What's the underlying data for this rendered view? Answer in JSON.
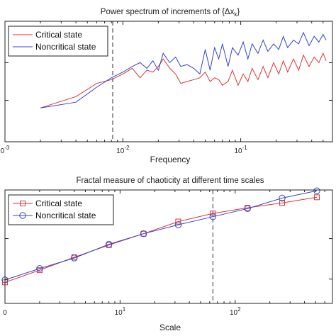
{
  "colors": {
    "critical": "#dd3333",
    "noncritical": "#3344cc",
    "axis": "#222222",
    "marker_line": "#333333"
  },
  "chart_data": [
    {
      "type": "line",
      "title": "Power spectrum of increments of {Δx",
      "title_sub": "k",
      "title_end": "}",
      "xlabel": "Frequency",
      "ylabel": "",
      "xscale": "log",
      "yscale": "log",
      "xlim": [
        0.001,
        0.6
      ],
      "ylim_log10": [
        -1.1,
        2.1
      ],
      "xticks": [
        {
          "value": 0.001,
          "base": "0",
          "exp": "-3"
        },
        {
          "value": 0.01,
          "base": "10",
          "exp": "-2"
        },
        {
          "value": 0.1,
          "base": "10",
          "exp": "-1"
        }
      ],
      "yticks_log10": [
        0,
        1
      ],
      "vline_x": 0.0082,
      "legend_position": "top-left",
      "series": [
        {
          "name": "Critical state",
          "color": "#dd3333",
          "x": [
            0.002,
            0.004,
            0.006,
            0.008,
            0.01,
            0.012,
            0.014,
            0.016,
            0.018,
            0.02,
            0.022,
            0.025,
            0.028,
            0.031,
            0.035,
            0.04,
            0.045,
            0.05,
            0.055,
            0.06,
            0.065,
            0.07,
            0.078,
            0.085,
            0.095,
            0.105,
            0.115,
            0.125,
            0.14,
            0.155,
            0.17,
            0.19,
            0.21,
            0.23,
            0.25,
            0.28,
            0.31,
            0.34,
            0.38,
            0.42,
            0.46,
            0.5,
            0.53
          ],
          "y_log10": [
            -0.2,
            0.1,
            0.45,
            0.55,
            0.7,
            0.85,
            0.6,
            0.8,
            0.75,
            0.9,
            1.1,
            0.85,
            0.7,
            0.45,
            0.5,
            0.55,
            0.6,
            0.75,
            0.5,
            0.6,
            0.55,
            0.4,
            0.5,
            0.8,
            0.4,
            0.7,
            0.5,
            0.85,
            0.55,
            0.9,
            0.6,
            1.0,
            0.7,
            1.05,
            0.75,
            1.1,
            0.8,
            1.2,
            0.9,
            1.15,
            1.0,
            1.25,
            1.05
          ]
        },
        {
          "name": "Noncritical state",
          "color": "#3344cc",
          "x": [
            0.002,
            0.004,
            0.006,
            0.008,
            0.01,
            0.012,
            0.014,
            0.016,
            0.018,
            0.02,
            0.022,
            0.025,
            0.028,
            0.031,
            0.035,
            0.04,
            0.045,
            0.05,
            0.055,
            0.06,
            0.065,
            0.07,
            0.078,
            0.085,
            0.095,
            0.105,
            0.115,
            0.125,
            0.14,
            0.155,
            0.17,
            0.19,
            0.21,
            0.23,
            0.25,
            0.28,
            0.31,
            0.34,
            0.38,
            0.42,
            0.46,
            0.5,
            0.53
          ],
          "y_log10": [
            -0.2,
            -0.05,
            0.35,
            0.6,
            0.75,
            0.9,
            1.0,
            0.85,
            1.05,
            0.8,
            1.25,
            1.0,
            1.15,
            0.9,
            0.95,
            0.85,
            0.7,
            1.35,
            0.8,
            1.4,
            1.1,
            1.5,
            0.9,
            1.4,
            1.2,
            1.55,
            1.1,
            1.5,
            1.25,
            1.6,
            1.3,
            1.5,
            1.35,
            1.7,
            1.4,
            1.6,
            1.5,
            1.8,
            1.45,
            1.7,
            1.55,
            1.75,
            1.6
          ]
        }
      ]
    },
    {
      "type": "line",
      "title": "Fractal measure of chaoticity at different time scales",
      "xlabel": "Scale",
      "ylabel": "",
      "xscale": "log",
      "yscale": "log",
      "xlim": [
        1,
        700
      ],
      "ylim_log10": [
        -0.3,
        1.1
      ],
      "xticks": [
        {
          "value": 1,
          "base": "0",
          "exp": ""
        },
        {
          "value": 10,
          "base": "10",
          "exp": "1"
        },
        {
          "value": 100,
          "base": "10",
          "exp": "2"
        }
      ],
      "yticks_log10": [
        0,
        0.5
      ],
      "vline_x": 64,
      "legend_position": "top-left",
      "series": [
        {
          "name": "Critical state",
          "color": "#dd3333",
          "marker": "square",
          "x": [
            1,
            2,
            4,
            8,
            16,
            32,
            64,
            128,
            256,
            512
          ],
          "y_log10": [
            -0.04,
            0.11,
            0.27,
            0.42,
            0.56,
            0.71,
            0.81,
            0.88,
            0.94,
            1.01
          ]
        },
        {
          "name": "Noncritical state",
          "color": "#3344cc",
          "marker": "circle",
          "x": [
            1,
            2,
            4,
            8,
            16,
            32,
            64,
            128,
            256,
            512
          ],
          "y_log10": [
            -0.01,
            0.13,
            0.26,
            0.43,
            0.56,
            0.67,
            0.77,
            0.87,
            1.0,
            1.09
          ]
        }
      ]
    }
  ]
}
